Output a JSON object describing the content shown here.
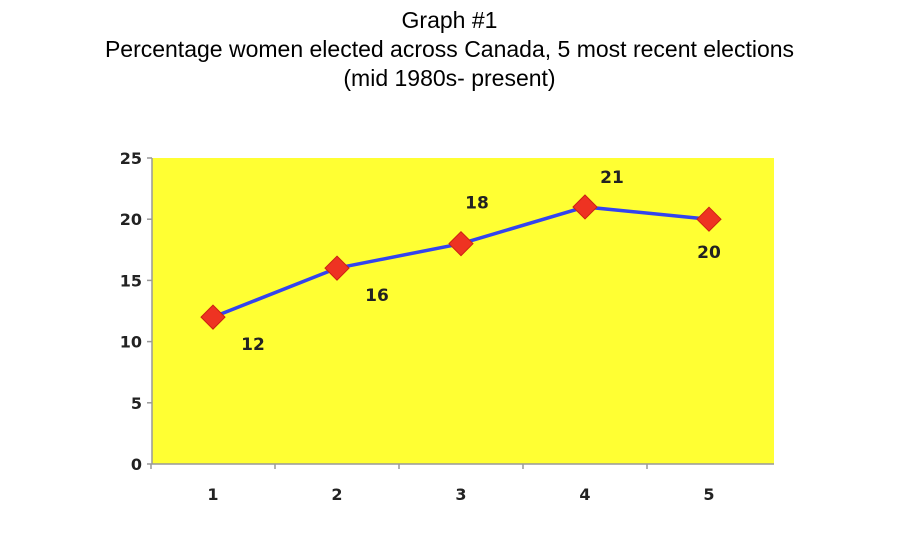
{
  "title_line1": "Graph #1",
  "title_line2": "Percentage women elected across Canada, 5 most recent elections",
  "title_line3": "(mid 1980s- present)",
  "colors": {
    "plot_background": "#ffff33",
    "line": "#3344ee",
    "marker": "#ee3322",
    "axis": "#999999"
  },
  "chart_data": {
    "type": "line",
    "title": "Graph #1 Percentage women elected across Canada, 5 most recent elections (mid 1980s- present)",
    "categories": [
      "1",
      "2",
      "3",
      "4",
      "5"
    ],
    "series": [
      {
        "name": "Percentage women elected",
        "values": [
          12,
          16,
          18,
          21,
          20
        ],
        "marker": "diamond"
      }
    ],
    "data_labels": [
      "12",
      "16",
      "18",
      "21",
      "20"
    ],
    "data_label_positions": [
      "below-right",
      "below-right",
      "above",
      "above-right",
      "below"
    ],
    "y_ticks": [
      "0",
      "5",
      "10",
      "15",
      "20",
      "25"
    ],
    "ylim": [
      0,
      25
    ],
    "xlabel": "",
    "ylabel": "",
    "grid": false,
    "legend": "none"
  }
}
